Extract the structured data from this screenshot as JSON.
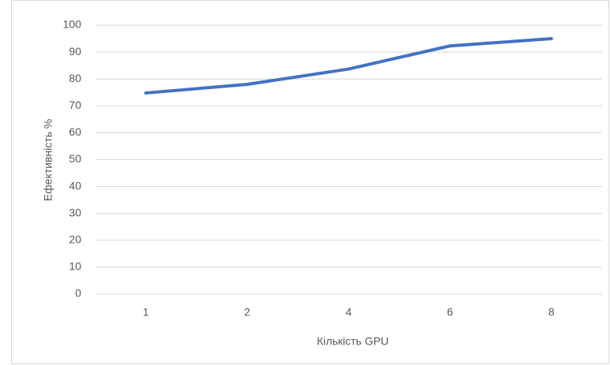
{
  "chart_data": {
    "type": "line",
    "x_label": "Кількість GPU",
    "y_label": "Ефективність %",
    "categories": [
      "1",
      "2",
      "4",
      "6",
      "8"
    ],
    "series": [
      {
        "name": "Ефективність",
        "color": "#4472c4",
        "values": [
          74.8,
          78,
          83.7,
          92.3,
          95
        ]
      }
    ],
    "ylim": [
      0,
      100
    ],
    "yticks": [
      0,
      10,
      20,
      30,
      40,
      50,
      60,
      70,
      80,
      90,
      100
    ],
    "grid": true
  }
}
